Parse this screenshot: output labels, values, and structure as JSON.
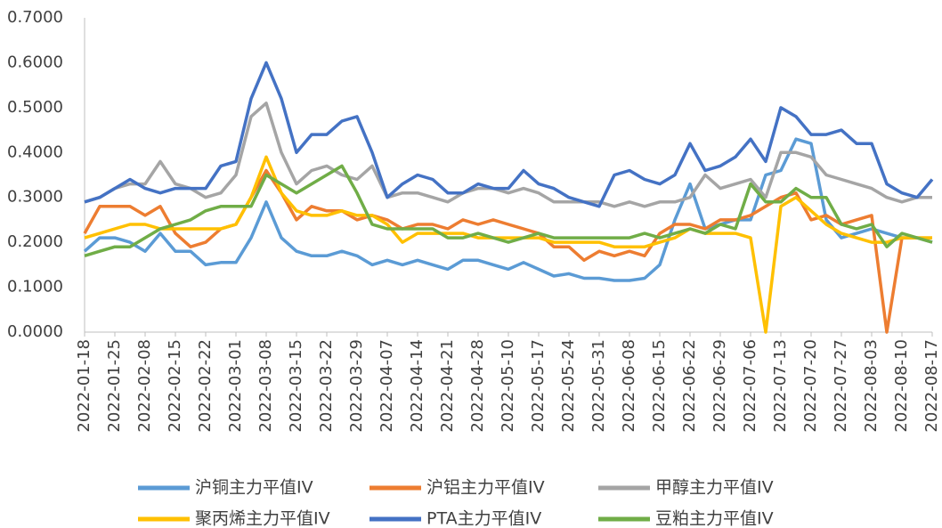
{
  "chart_data": {
    "type": "line",
    "categories": [
      "2022-01-18",
      null,
      "2022-01-25",
      null,
      "2022-02-08",
      null,
      "2022-02-15",
      null,
      "2022-02-22",
      null,
      "2022-03-01",
      null,
      "2022-03-08",
      null,
      "2022-03-15",
      null,
      "2022-03-22",
      null,
      "2022-03-29",
      null,
      "2022-04-07",
      null,
      "2022-04-14",
      null,
      "2022-04-21",
      null,
      "2022-04-28",
      null,
      "2022-05-10",
      null,
      "2022-05-17",
      null,
      "2022-05-24",
      null,
      "2022-05-31",
      null,
      "2022-06-08",
      null,
      "2022-06-15",
      null,
      "2022-06-22",
      null,
      "2022-06-29",
      null,
      "2022-07-06",
      null,
      "2022-07-13",
      null,
      "2022-07-20",
      null,
      "2022-07-27",
      null,
      "2022-08-03",
      null,
      "2022-08-10",
      null,
      "2022-08-17"
    ],
    "ylim": [
      0,
      0.7
    ],
    "yticks": [
      {
        "value": 0,
        "label": "0.0000"
      },
      {
        "value": 0.1,
        "label": "0.1000"
      },
      {
        "value": 0.2,
        "label": "0.2000"
      },
      {
        "value": 0.3,
        "label": "0.3000"
      },
      {
        "value": 0.4,
        "label": "0.4000"
      },
      {
        "value": 0.5,
        "label": "0.5000"
      },
      {
        "value": 0.6,
        "label": "0.6000"
      },
      {
        "value": 0.7,
        "label": "0.7000"
      }
    ],
    "series": [
      {
        "name": "沪铜主力平值IV",
        "color": "#5B9BD5",
        "values": [
          0.18,
          0.21,
          0.21,
          0.2,
          0.18,
          0.22,
          0.18,
          0.18,
          0.15,
          0.155,
          0.155,
          0.21,
          0.29,
          0.21,
          0.18,
          0.17,
          0.17,
          0.18,
          0.17,
          0.15,
          0.16,
          0.15,
          0.16,
          0.15,
          0.14,
          0.16,
          0.16,
          0.15,
          0.14,
          0.155,
          0.14,
          0.125,
          0.13,
          0.12,
          0.12,
          0.115,
          0.115,
          0.12,
          0.15,
          0.25,
          0.33,
          0.23,
          0.24,
          0.25,
          0.25,
          0.35,
          0.36,
          0.43,
          0.42,
          0.25,
          0.21,
          0.22,
          0.23,
          0.22,
          0.21,
          0.21,
          0.2
        ]
      },
      {
        "name": "沪铝主力平值IV",
        "color": "#ED7D31",
        "values": [
          0.22,
          0.28,
          0.28,
          0.28,
          0.26,
          0.28,
          0.22,
          0.19,
          0.2,
          0.23,
          0.24,
          0.3,
          0.36,
          0.31,
          0.25,
          0.28,
          0.27,
          0.27,
          0.25,
          0.26,
          0.25,
          0.23,
          0.24,
          0.24,
          0.23,
          0.25,
          0.24,
          0.25,
          0.24,
          0.23,
          0.22,
          0.19,
          0.19,
          0.16,
          0.18,
          0.17,
          0.18,
          0.17,
          0.22,
          0.24,
          0.24,
          0.23,
          0.25,
          0.25,
          0.26,
          0.28,
          0.3,
          0.31,
          0.25,
          0.26,
          0.24,
          0.25,
          0.26,
          0.0,
          0.21,
          0.21,
          0.21
        ]
      },
      {
        "name": "甲醇主力平值IV",
        "color": "#A5A5A5",
        "values": [
          0.29,
          0.3,
          0.32,
          0.33,
          0.33,
          0.38,
          0.33,
          0.32,
          0.3,
          0.31,
          0.35,
          0.48,
          0.51,
          0.4,
          0.33,
          0.36,
          0.37,
          0.35,
          0.34,
          0.37,
          0.3,
          0.31,
          0.31,
          0.3,
          0.29,
          0.31,
          0.32,
          0.32,
          0.31,
          0.32,
          0.31,
          0.29,
          0.29,
          0.29,
          0.29,
          0.28,
          0.29,
          0.28,
          0.29,
          0.29,
          0.3,
          0.35,
          0.32,
          0.33,
          0.34,
          0.3,
          0.4,
          0.4,
          0.39,
          0.35,
          0.34,
          0.33,
          0.32,
          0.3,
          0.29,
          0.3,
          0.3
        ]
      },
      {
        "name": "聚丙烯主力平值IV",
        "color": "#FFC000",
        "values": [
          0.21,
          0.22,
          0.23,
          0.24,
          0.24,
          0.23,
          0.23,
          0.23,
          0.23,
          0.23,
          0.24,
          0.3,
          0.39,
          0.31,
          0.27,
          0.26,
          0.26,
          0.27,
          0.26,
          0.26,
          0.24,
          0.2,
          0.22,
          0.22,
          0.22,
          0.22,
          0.21,
          0.21,
          0.21,
          0.21,
          0.21,
          0.2,
          0.2,
          0.2,
          0.2,
          0.19,
          0.19,
          0.19,
          0.2,
          0.21,
          0.23,
          0.22,
          0.22,
          0.22,
          0.21,
          0.0,
          0.28,
          0.3,
          0.27,
          0.24,
          0.22,
          0.21,
          0.2,
          0.2,
          0.21,
          0.21,
          0.21
        ]
      },
      {
        "name": "PTA主力平值IV",
        "color": "#4472C4",
        "values": [
          0.29,
          0.3,
          0.32,
          0.34,
          0.32,
          0.31,
          0.32,
          0.32,
          0.32,
          0.37,
          0.38,
          0.52,
          0.6,
          0.52,
          0.4,
          0.44,
          0.44,
          0.47,
          0.48,
          0.4,
          0.3,
          0.33,
          0.35,
          0.34,
          0.31,
          0.31,
          0.33,
          0.32,
          0.32,
          0.36,
          0.33,
          0.32,
          0.3,
          0.29,
          0.28,
          0.35,
          0.36,
          0.34,
          0.33,
          0.35,
          0.42,
          0.36,
          0.37,
          0.39,
          0.43,
          0.38,
          0.5,
          0.48,
          0.44,
          0.44,
          0.45,
          0.42,
          0.42,
          0.33,
          0.31,
          0.3,
          0.34
        ]
      },
      {
        "name": "豆粕主力平值IV",
        "color": "#70AD47",
        "values": [
          0.17,
          0.18,
          0.19,
          0.19,
          0.21,
          0.23,
          0.24,
          0.25,
          0.27,
          0.28,
          0.28,
          0.28,
          0.35,
          0.33,
          0.31,
          0.33,
          0.35,
          0.37,
          0.31,
          0.24,
          0.23,
          0.23,
          0.23,
          0.23,
          0.21,
          0.21,
          0.22,
          0.21,
          0.2,
          0.21,
          0.22,
          0.21,
          0.21,
          0.21,
          0.21,
          0.21,
          0.21,
          0.22,
          0.21,
          0.22,
          0.23,
          0.22,
          0.24,
          0.23,
          0.33,
          0.29,
          0.29,
          0.32,
          0.3,
          0.3,
          0.24,
          0.23,
          0.24,
          0.19,
          0.22,
          0.21,
          0.2
        ]
      }
    ]
  }
}
